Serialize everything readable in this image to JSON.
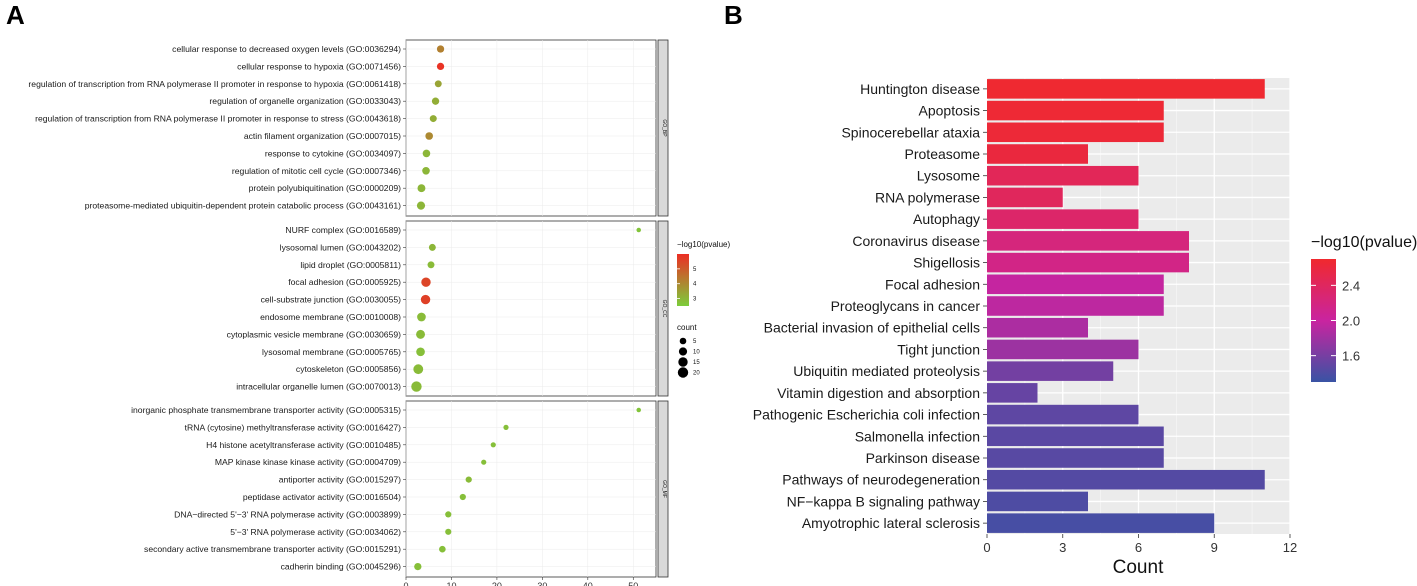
{
  "panel_labels": {
    "a": "A",
    "b": "B"
  },
  "chart_data": [
    {
      "type": "scatter",
      "panel": "A",
      "xlabel": "",
      "ylabel": "",
      "xlim": [
        0,
        55
      ],
      "xticks": [
        0,
        10,
        20,
        30,
        40,
        50
      ],
      "color_scale": {
        "stops": [
          "#7ccd3b",
          "#ec2e24"
        ],
        "domain": [
          2.5,
          6
        ]
      },
      "legend_color_title": "−log10(pvalue)",
      "legend_color_ticks": [
        3,
        4,
        5
      ],
      "legend_size_title": "count",
      "legend_size_ticks": [
        5,
        10,
        15,
        20
      ],
      "facets": [
        {
          "name": "GO_BP",
          "terms": [
            {
              "label": "cellular response to decreased oxygen levels (GO:0036294)",
              "x": 7.6,
              "p": 4.2,
              "count": 7
            },
            {
              "label": "cellular response to hypoxia (GO:0071456)",
              "x": 7.6,
              "p": 5.9,
              "count": 7
            },
            {
              "label": "regulation of transcription from RNA polymerase II promoter in response to hypoxia (GO:0061418)",
              "x": 7.1,
              "p": 3.4,
              "count": 6
            },
            {
              "label": "regulation of organelle organization (GO:0033043)",
              "x": 6.5,
              "p": 3.2,
              "count": 7
            },
            {
              "label": "regulation of transcription from RNA polymerase II promoter in response to stress (GO:0043618)",
              "x": 6.0,
              "p": 3.2,
              "count": 6
            },
            {
              "label": "actin filament organization (GO:0007015)",
              "x": 5.1,
              "p": 4.0,
              "count": 8
            },
            {
              "label": "response to cytokine (GO:0034097)",
              "x": 4.5,
              "p": 3.0,
              "count": 8
            },
            {
              "label": "regulation of mitotic cell cycle (GO:0007346)",
              "x": 4.4,
              "p": 3.0,
              "count": 8
            },
            {
              "label": "protein polyubiquitination (GO:0000209)",
              "x": 3.4,
              "p": 3.0,
              "count": 9
            },
            {
              "label": "proteasome-mediated ubiquitin-dependent protein catabolic process (GO:0043161)",
              "x": 3.3,
              "p": 3.0,
              "count": 10
            }
          ]
        },
        {
          "name": "GO_CC",
          "terms": [
            {
              "label": "NURF complex (GO:0016589)",
              "x": 51.2,
              "p": 2.7,
              "count": 1
            },
            {
              "label": "lysosomal lumen (GO:0043202)",
              "x": 5.8,
              "p": 3.0,
              "count": 6
            },
            {
              "label": "lipid droplet (GO:0005811)",
              "x": 5.5,
              "p": 2.9,
              "count": 6
            },
            {
              "label": "focal adhesion (GO:0005925)",
              "x": 4.4,
              "p": 5.5,
              "count": 15
            },
            {
              "label": "cell-substrate junction (GO:0030055)",
              "x": 4.3,
              "p": 5.6,
              "count": 15
            },
            {
              "label": "endosome membrane (GO:0010008)",
              "x": 3.4,
              "p": 2.9,
              "count": 12
            },
            {
              "label": "cytoplasmic vesicle membrane (GO:0030659)",
              "x": 3.2,
              "p": 2.9,
              "count": 13
            },
            {
              "label": "lysosomal membrane (GO:0005765)",
              "x": 3.2,
              "p": 2.8,
              "count": 12
            },
            {
              "label": "cytoskeleton (GO:0005856)",
              "x": 2.7,
              "p": 2.9,
              "count": 17
            },
            {
              "label": "intracellular organelle lumen (GO:0070013)",
              "x": 2.3,
              "p": 2.9,
              "count": 20
            }
          ]
        },
        {
          "name": "GO_MF",
          "terms": [
            {
              "label": "inorganic phosphate transmembrane transporter activity (GO:0005315)",
              "x": 51.2,
              "p": 2.7,
              "count": 1
            },
            {
              "label": "tRNA (cytosine) methyltransferase activity (GO:0016427)",
              "x": 22.0,
              "p": 2.8,
              "count": 2
            },
            {
              "label": "H4 histone acetyltransferase activity (GO:0010485)",
              "x": 19.2,
              "p": 2.8,
              "count": 2
            },
            {
              "label": "MAP kinase kinase kinase activity (GO:0004709)",
              "x": 17.1,
              "p": 2.8,
              "count": 2
            },
            {
              "label": "antiporter activity (GO:0015297)",
              "x": 13.8,
              "p": 2.9,
              "count": 4
            },
            {
              "label": "peptidase activator activity (GO:0016504)",
              "x": 12.5,
              "p": 2.8,
              "count": 4
            },
            {
              "label": "DNA−directed 5'−3' RNA polymerase activity (GO:0003899)",
              "x": 9.3,
              "p": 2.8,
              "count": 4
            },
            {
              "label": "5'−3' RNA polymerase activity (GO:0034062)",
              "x": 9.3,
              "p": 2.8,
              "count": 4
            },
            {
              "label": "secondary active transmembrane transporter activity (GO:0015291)",
              "x": 8.0,
              "p": 2.8,
              "count": 5
            },
            {
              "label": "cadherin binding (GO:0045296)",
              "x": 2.6,
              "p": 2.8,
              "count": 7
            }
          ]
        }
      ]
    },
    {
      "type": "bar",
      "panel": "B",
      "orientation": "horizontal",
      "xlabel": "Count",
      "ylabel": "",
      "xlim": [
        0,
        12
      ],
      "xticks": [
        0,
        3,
        6,
        9,
        12
      ],
      "color_scale": {
        "stops": [
          "#3953a4",
          "#c924a0",
          "#f0292e"
        ],
        "domain": [
          1.3,
          2.7
        ]
      },
      "legend_title": "−log10(pvalue)",
      "legend_ticks": [
        1.6,
        2.0,
        2.4
      ],
      "categories": [
        "Huntington disease",
        "Apoptosis",
        "Spinocerebellar ataxia",
        "Proteasome",
        "Lysosome",
        "RNA polymerase",
        "Autophagy",
        "Coronavirus disease",
        "Shigellosis",
        "Focal adhesion",
        "Proteoglycans in cancer",
        "Bacterial invasion of epithelial cells",
        "Tight junction",
        "Ubiquitin mediated proteolysis",
        "Vitamin digestion and absorption",
        "Pathogenic Escherichia coli infection",
        "Salmonella infection",
        "Parkinson disease",
        "Pathways of neurodegeneration",
        "NF−kappa B signaling pathway",
        "Amyotrophic lateral sclerosis"
      ],
      "values": [
        11,
        7,
        7,
        4,
        6,
        3,
        6,
        8,
        8,
        7,
        7,
        4,
        6,
        5,
        2,
        6,
        7,
        7,
        11,
        4,
        9
      ],
      "pvalue_log": [
        2.68,
        2.66,
        2.64,
        2.6,
        2.44,
        2.42,
        2.34,
        2.22,
        2.16,
        1.98,
        1.94,
        1.86,
        1.78,
        1.58,
        1.52,
        1.48,
        1.46,
        1.45,
        1.43,
        1.4,
        1.37
      ]
    }
  ]
}
